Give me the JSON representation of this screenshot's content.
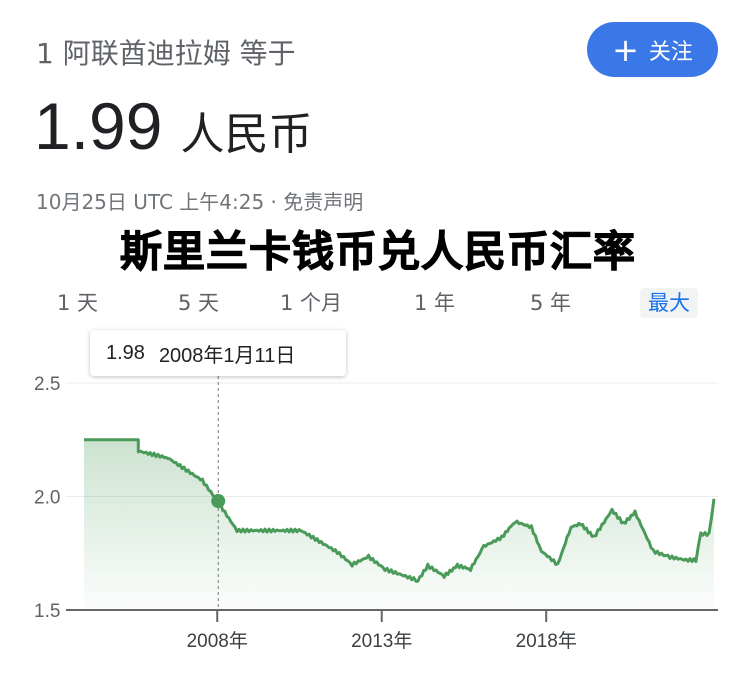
{
  "header": {
    "subtitle": "1 阿联酋迪拉姆 等于",
    "rate": "1.99",
    "currency": "人民币",
    "timestamp": "10月25日 UTC 上午4:25 · 免责声明",
    "follow_label": "关注",
    "follow_icon": "plus-icon"
  },
  "range_tabs": [
    "1 天",
    "5 天",
    "1 个月",
    "1 年",
    "5 年",
    "最大"
  ],
  "active_tab": "最大",
  "overlay_title": "斯里兰卡钱币兑人民币汇率",
  "tooltip": {
    "value": "1.98",
    "date": "2008年1月11日"
  },
  "colors": {
    "line": "#4a9a5a",
    "accent": "#1a73e8",
    "follow_bg": "#3b78e7"
  },
  "chart_data": {
    "type": "area",
    "ylim": [
      1.5,
      2.5
    ],
    "yticks": [
      "1.5",
      "2.0",
      "2.5"
    ],
    "xticks": [
      {
        "year": 2008,
        "label": "2008年"
      },
      {
        "year": 2013,
        "label": "2013年"
      },
      {
        "year": 2018,
        "label": "2018年"
      }
    ],
    "xlim": [
      2003.95,
      2023.1
    ],
    "grid": true,
    "highlight": {
      "x": 2008.03,
      "y": 1.98
    },
    "series": [
      {
        "x": [
          2003.95,
          2005.6,
          2005.6,
          2006.5,
          2007.55,
          2008.05,
          2008.6,
          2010.55,
          2011.65,
          2012.1,
          2012.6,
          2013.1,
          2014.1,
          2014.4,
          2014.9,
          2015.3,
          2015.7,
          2016.1,
          2016.65,
          2017.05,
          2017.55,
          2017.85,
          2018.35,
          2018.75,
          2019.05,
          2019.45,
          2020.0,
          2020.35,
          2020.7,
          2021.25,
          2021.7,
          2022.25,
          2022.55,
          2022.7,
          2022.95,
          2023.1
        ],
        "y": [
          2.25,
          2.25,
          2.2,
          2.17,
          2.07,
          1.97,
          1.85,
          1.85,
          1.755,
          1.7,
          1.735,
          1.68,
          1.63,
          1.695,
          1.65,
          1.695,
          1.68,
          1.78,
          1.82,
          1.89,
          1.865,
          1.76,
          1.7,
          1.865,
          1.88,
          1.82,
          1.94,
          1.88,
          1.93,
          1.76,
          1.735,
          1.72,
          1.72,
          1.835,
          1.835,
          1.99
        ]
      }
    ]
  }
}
